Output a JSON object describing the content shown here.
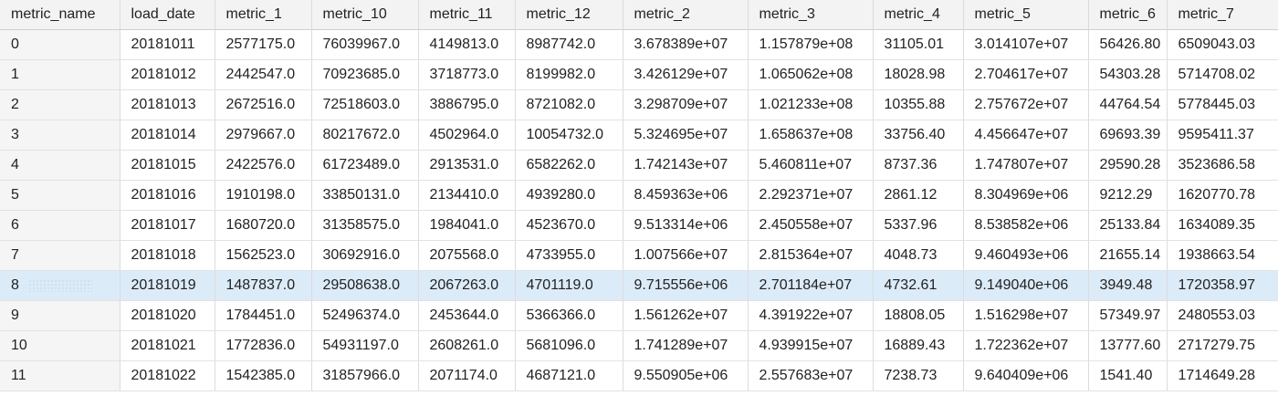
{
  "table": {
    "columns": [
      "metric_name",
      "load_date",
      "metric_1",
      "metric_10",
      "metric_11",
      "metric_12",
      "metric_2",
      "metric_3",
      "metric_4",
      "metric_5",
      "metric_6",
      "metric_7"
    ],
    "rows": [
      [
        "0",
        "20181011",
        "2577175.0",
        "76039967.0",
        "4149813.0",
        "8987742.0",
        "3.678389e+07",
        "1.157879e+08",
        "31105.01",
        "3.014107e+07",
        "56426.80",
        "6509043.03"
      ],
      [
        "1",
        "20181012",
        "2442547.0",
        "70923685.0",
        "3718773.0",
        "8199982.0",
        "3.426129e+07",
        "1.065062e+08",
        "18028.98",
        "2.704617e+07",
        "54303.28",
        "5714708.02"
      ],
      [
        "2",
        "20181013",
        "2672516.0",
        "72518603.0",
        "3886795.0",
        "8721082.0",
        "3.298709e+07",
        "1.021233e+08",
        "10355.88",
        "2.757672e+07",
        "44764.54",
        "5778445.03"
      ],
      [
        "3",
        "20181014",
        "2979667.0",
        "80217672.0",
        "4502964.0",
        "10054732.0",
        "5.324695e+07",
        "1.658637e+08",
        "33756.40",
        "4.456647e+07",
        "69693.39",
        "9595411.37"
      ],
      [
        "4",
        "20181015",
        "2422576.0",
        "61723489.0",
        "2913531.0",
        "6582262.0",
        "1.742143e+07",
        "5.460811e+07",
        "8737.36",
        "1.747807e+07",
        "29590.28",
        "3523686.58"
      ],
      [
        "5",
        "20181016",
        "1910198.0",
        "33850131.0",
        "2134410.0",
        "4939280.0",
        "8.459363e+06",
        "2.292371e+07",
        "2861.12",
        "8.304969e+06",
        "9212.29",
        "1620770.78"
      ],
      [
        "6",
        "20181017",
        "1680720.0",
        "31358575.0",
        "1984041.0",
        "4523670.0",
        "9.513314e+06",
        "2.450558e+07",
        "5337.96",
        "8.538582e+06",
        "25133.84",
        "1634089.35"
      ],
      [
        "7",
        "20181018",
        "1562523.0",
        "30692916.0",
        "2075568.0",
        "4733955.0",
        "1.007566e+07",
        "2.815364e+07",
        "4048.73",
        "9.460493e+06",
        "21655.14",
        "1938663.54"
      ],
      [
        "8",
        "20181019",
        "1487837.0",
        "29508638.0",
        "2067263.0",
        "4701119.0",
        "9.715556e+06",
        "2.701184e+07",
        "4732.61",
        "9.149040e+06",
        "3949.48",
        "1720358.97"
      ],
      [
        "9",
        "20181020",
        "1784451.0",
        "52496374.0",
        "2453644.0",
        "5366366.0",
        "1.561262e+07",
        "4.391922e+07",
        "18808.05",
        "1.516298e+07",
        "57349.97",
        "2480553.03"
      ],
      [
        "10",
        "20181021",
        "1772836.0",
        "54931197.0",
        "2608261.0",
        "5681096.0",
        "1.741289e+07",
        "4.939915e+07",
        "16889.43",
        "1.722362e+07",
        "13777.60",
        "2717279.75"
      ],
      [
        "11",
        "20181022",
        "1542385.0",
        "31857966.0",
        "2071174.0",
        "4687121.0",
        "9.550905e+06",
        "2.557683e+07",
        "7238.73",
        "9.640409e+06",
        "1541.40",
        "1714649.28"
      ]
    ],
    "selected_row_index": 8
  }
}
